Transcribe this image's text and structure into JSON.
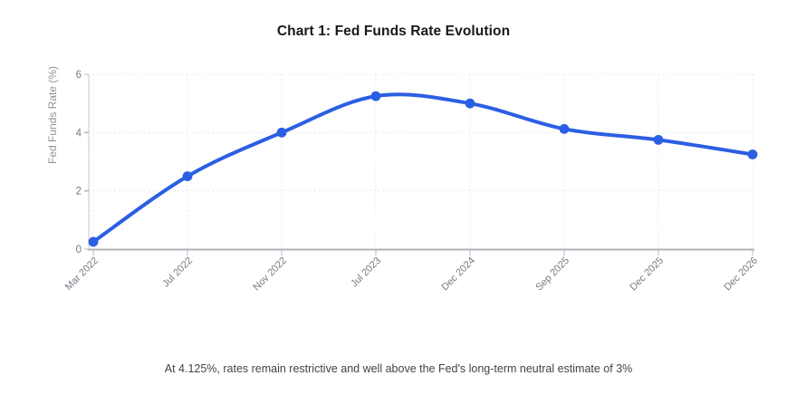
{
  "figure": {
    "title": "Chart 1: Fed Funds Rate Evolution",
    "caption": "At 4.125%, rates remain restrictive and well above the Fed's long-term neutral estimate of 3%"
  },
  "chart_data": {
    "type": "line",
    "title": "Chart 1: Fed Funds Rate Evolution",
    "categories": [
      "Mar 2022",
      "Jul 2022",
      "Nov 2022",
      "Jul 2023",
      "Dec 2024",
      "Sep 2025",
      "Dec 2025",
      "Dec 2026"
    ],
    "series": [
      {
        "name": "Fed Funds Rate",
        "values": [
          0.25,
          2.5,
          4.0,
          5.25,
          5.0,
          4.125,
          3.75,
          3.25
        ]
      }
    ],
    "xlabel": "",
    "ylabel": "Fed Funds Rate (%)",
    "ylim": [
      0,
      6
    ],
    "yticks": [
      0,
      2,
      4,
      6
    ],
    "x_label_rotation": -45,
    "grid": true,
    "grid_style": "dotted",
    "smooth": true,
    "marker": "circle",
    "legend_visible": false,
    "annotation": "At 4.125%, rates remain restrictive and well above the Fed's long-term neutral estimate of 3%"
  },
  "colors": {
    "line": "#2b5fe3",
    "marker": "#2b5fe3",
    "title_text": "#15181c",
    "axis_label": "#767b84",
    "axis_title": "#8e939c",
    "gridline": "#e2e4e9",
    "x_axis_line": "#aeb1b8",
    "y_axis_line": "#c3c7cd",
    "tick": "#b4b7be",
    "caption_text": "#3f444b",
    "background": "#ffffff"
  }
}
